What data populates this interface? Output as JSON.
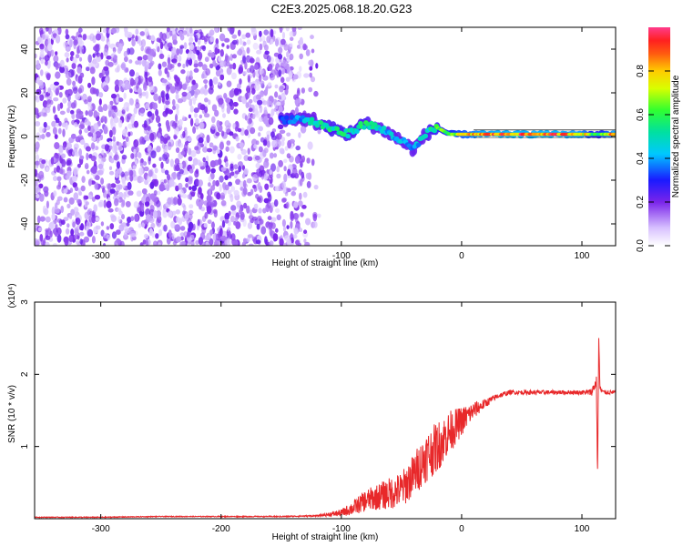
{
  "title": "C2E3.2025.068.18.20.G23",
  "colors": {
    "snr_line": "#e8282a",
    "spectrum_noise": "#7b2ff0",
    "spectrum_core": "#e83030"
  },
  "chart_data": [
    {
      "type": "heatmap",
      "title": "C2E3.2025.068.18.20.G23",
      "xlabel": "Height of straight line (km)",
      "ylabel": "Frequency (Hz)",
      "xlim": [
        -355,
        128
      ],
      "ylim": [
        -50,
        50
      ],
      "xticks": [
        -300,
        -200,
        -100,
        0,
        100
      ],
      "yticks": [
        -40,
        -20,
        0,
        20,
        40
      ],
      "colorbar": {
        "label": "Normalized spectral amplitude",
        "range": [
          0,
          1
        ],
        "ticks": [
          "0.0",
          "0.2",
          "0.4",
          "0.6",
          "0.8"
        ],
        "colormap": "rainbow"
      },
      "ridge": {
        "x": [
          -150,
          -130,
          -110,
          -95,
          -80,
          -65,
          -50,
          -40,
          -30,
          -20,
          -10,
          0,
          20,
          50,
          80,
          100,
          112,
          128
        ],
        "freq_hz": [
          8,
          8,
          4,
          1,
          6,
          3,
          -2,
          -6,
          1,
          4,
          1,
          1,
          1,
          1,
          1,
          1,
          1,
          1
        ],
        "amplitude": [
          0.3,
          0.45,
          0.55,
          0.55,
          0.55,
          0.45,
          0.45,
          0.4,
          0.5,
          0.6,
          0.7,
          0.75,
          0.9,
          0.9,
          0.9,
          0.85,
          0.6,
          0.9
        ]
      }
    },
    {
      "type": "line",
      "xlabel": "Height of straight line (km)",
      "ylabel": "SNR (10 * v/v)",
      "y_multiplier": "(x10⁴)",
      "xlim": [
        -355,
        128
      ],
      "ylim": [
        0,
        3
      ],
      "xticks": [
        -300,
        -200,
        -100,
        0,
        100
      ],
      "yticks": [
        1,
        2,
        3
      ],
      "series": [
        {
          "x": [
            -355,
            -300,
            -250,
            -200,
            -150,
            -120,
            -100,
            -90,
            -80,
            -70,
            -60,
            -50,
            -40,
            -30,
            -20,
            -10,
            0,
            10,
            20,
            30,
            40,
            60,
            80,
            100,
            108,
            112,
            113,
            114,
            115,
            118,
            128
          ],
          "y": [
            0.02,
            0.02,
            0.03,
            0.03,
            0.03,
            0.04,
            0.08,
            0.15,
            0.25,
            0.3,
            0.35,
            0.4,
            0.6,
            0.85,
            1.0,
            1.2,
            1.35,
            1.5,
            1.6,
            1.7,
            1.75,
            1.75,
            1.75,
            1.75,
            1.75,
            1.9,
            0.6,
            2.5,
            1.8,
            1.75,
            1.75
          ],
          "noise": [
            0.005,
            0.006,
            0.006,
            0.006,
            0.008,
            0.01,
            0.05,
            0.1,
            0.15,
            0.18,
            0.22,
            0.25,
            0.3,
            0.35,
            0.35,
            0.3,
            0.2,
            0.12,
            0.06,
            0.04,
            0.03,
            0.03,
            0.03,
            0.03,
            0.05,
            0.1,
            0.1,
            0.1,
            0.05,
            0.03,
            0.03
          ]
        }
      ]
    }
  ]
}
